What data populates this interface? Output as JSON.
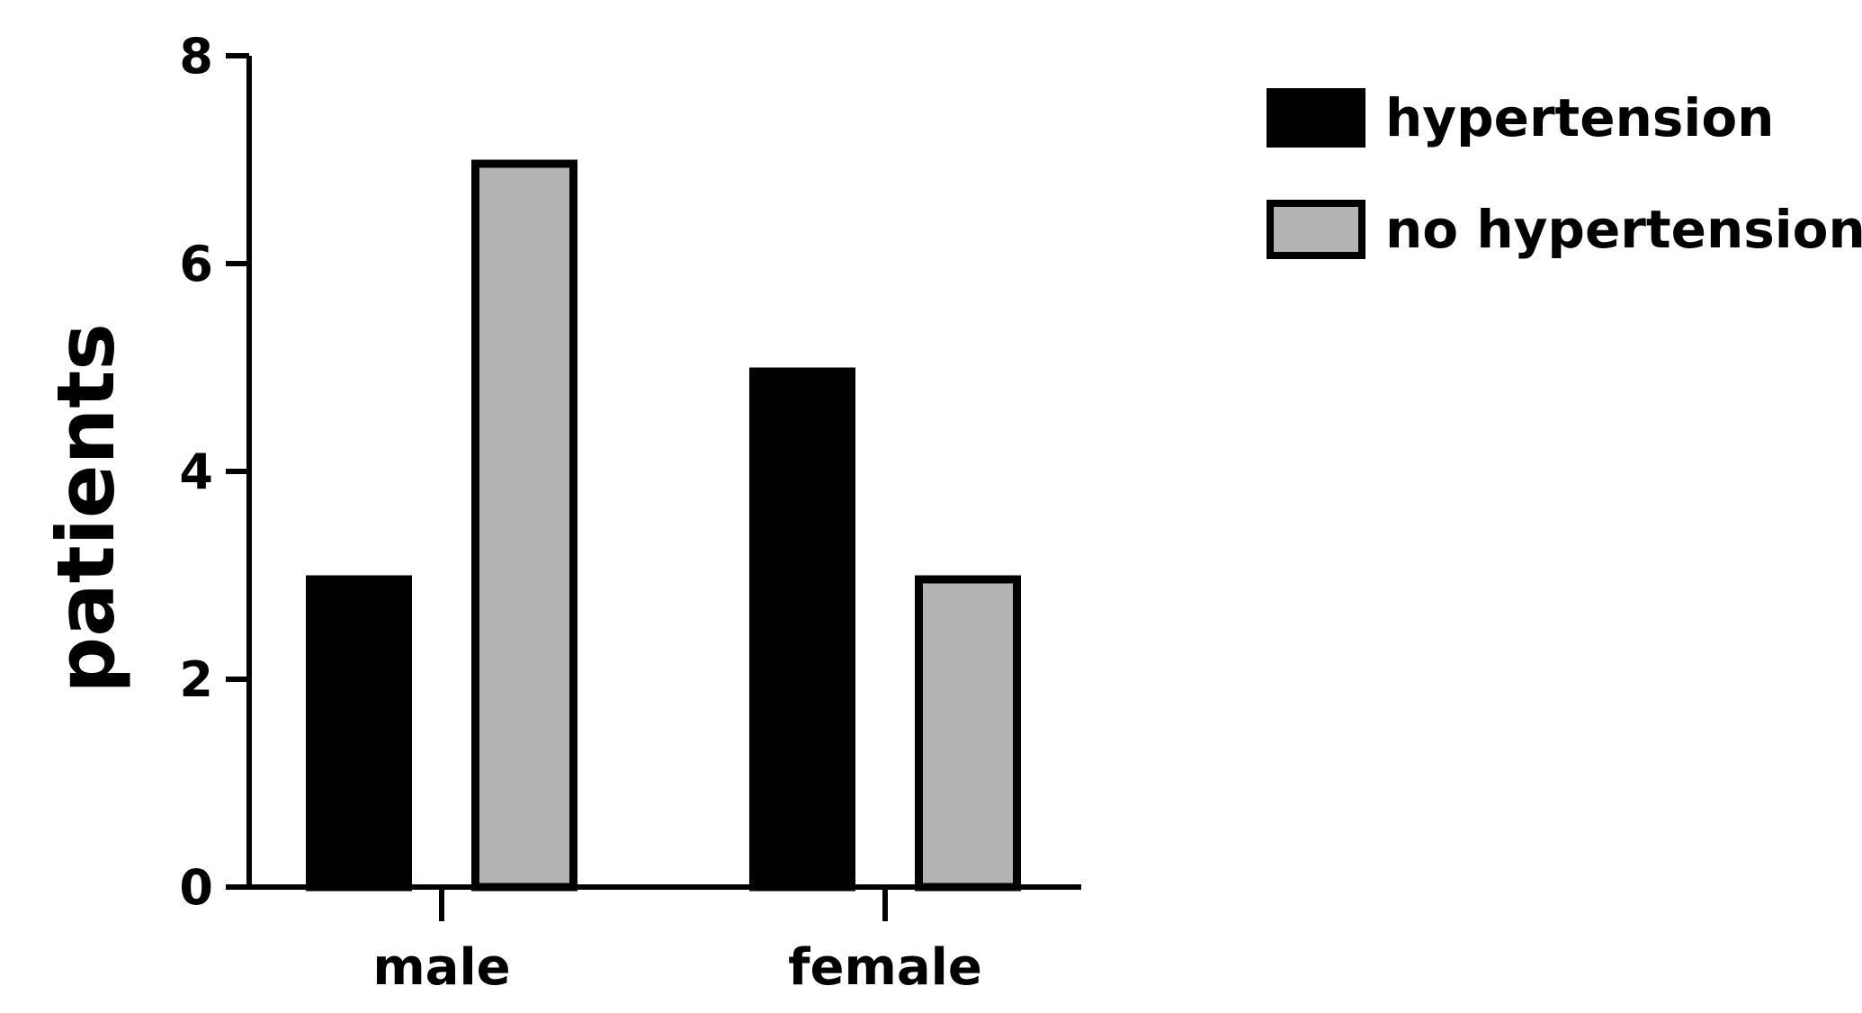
{
  "chart_data": {
    "type": "bar",
    "title": "",
    "xlabel": "",
    "ylabel": "patients",
    "categories": [
      "male",
      "female"
    ],
    "series": [
      {
        "name": "hypertension",
        "values": [
          3,
          5
        ],
        "color": "#000000"
      },
      {
        "name": "no hypertension",
        "values": [
          7,
          3
        ],
        "color": "#b3b3b6"
      }
    ],
    "ylim": [
      0,
      8
    ],
    "yticks": [
      0,
      2,
      4,
      6,
      8
    ],
    "ytick_labels": [
      "0",
      "2",
      "4",
      "6",
      "8"
    ],
    "grid": false,
    "legend_position": "top-right"
  }
}
